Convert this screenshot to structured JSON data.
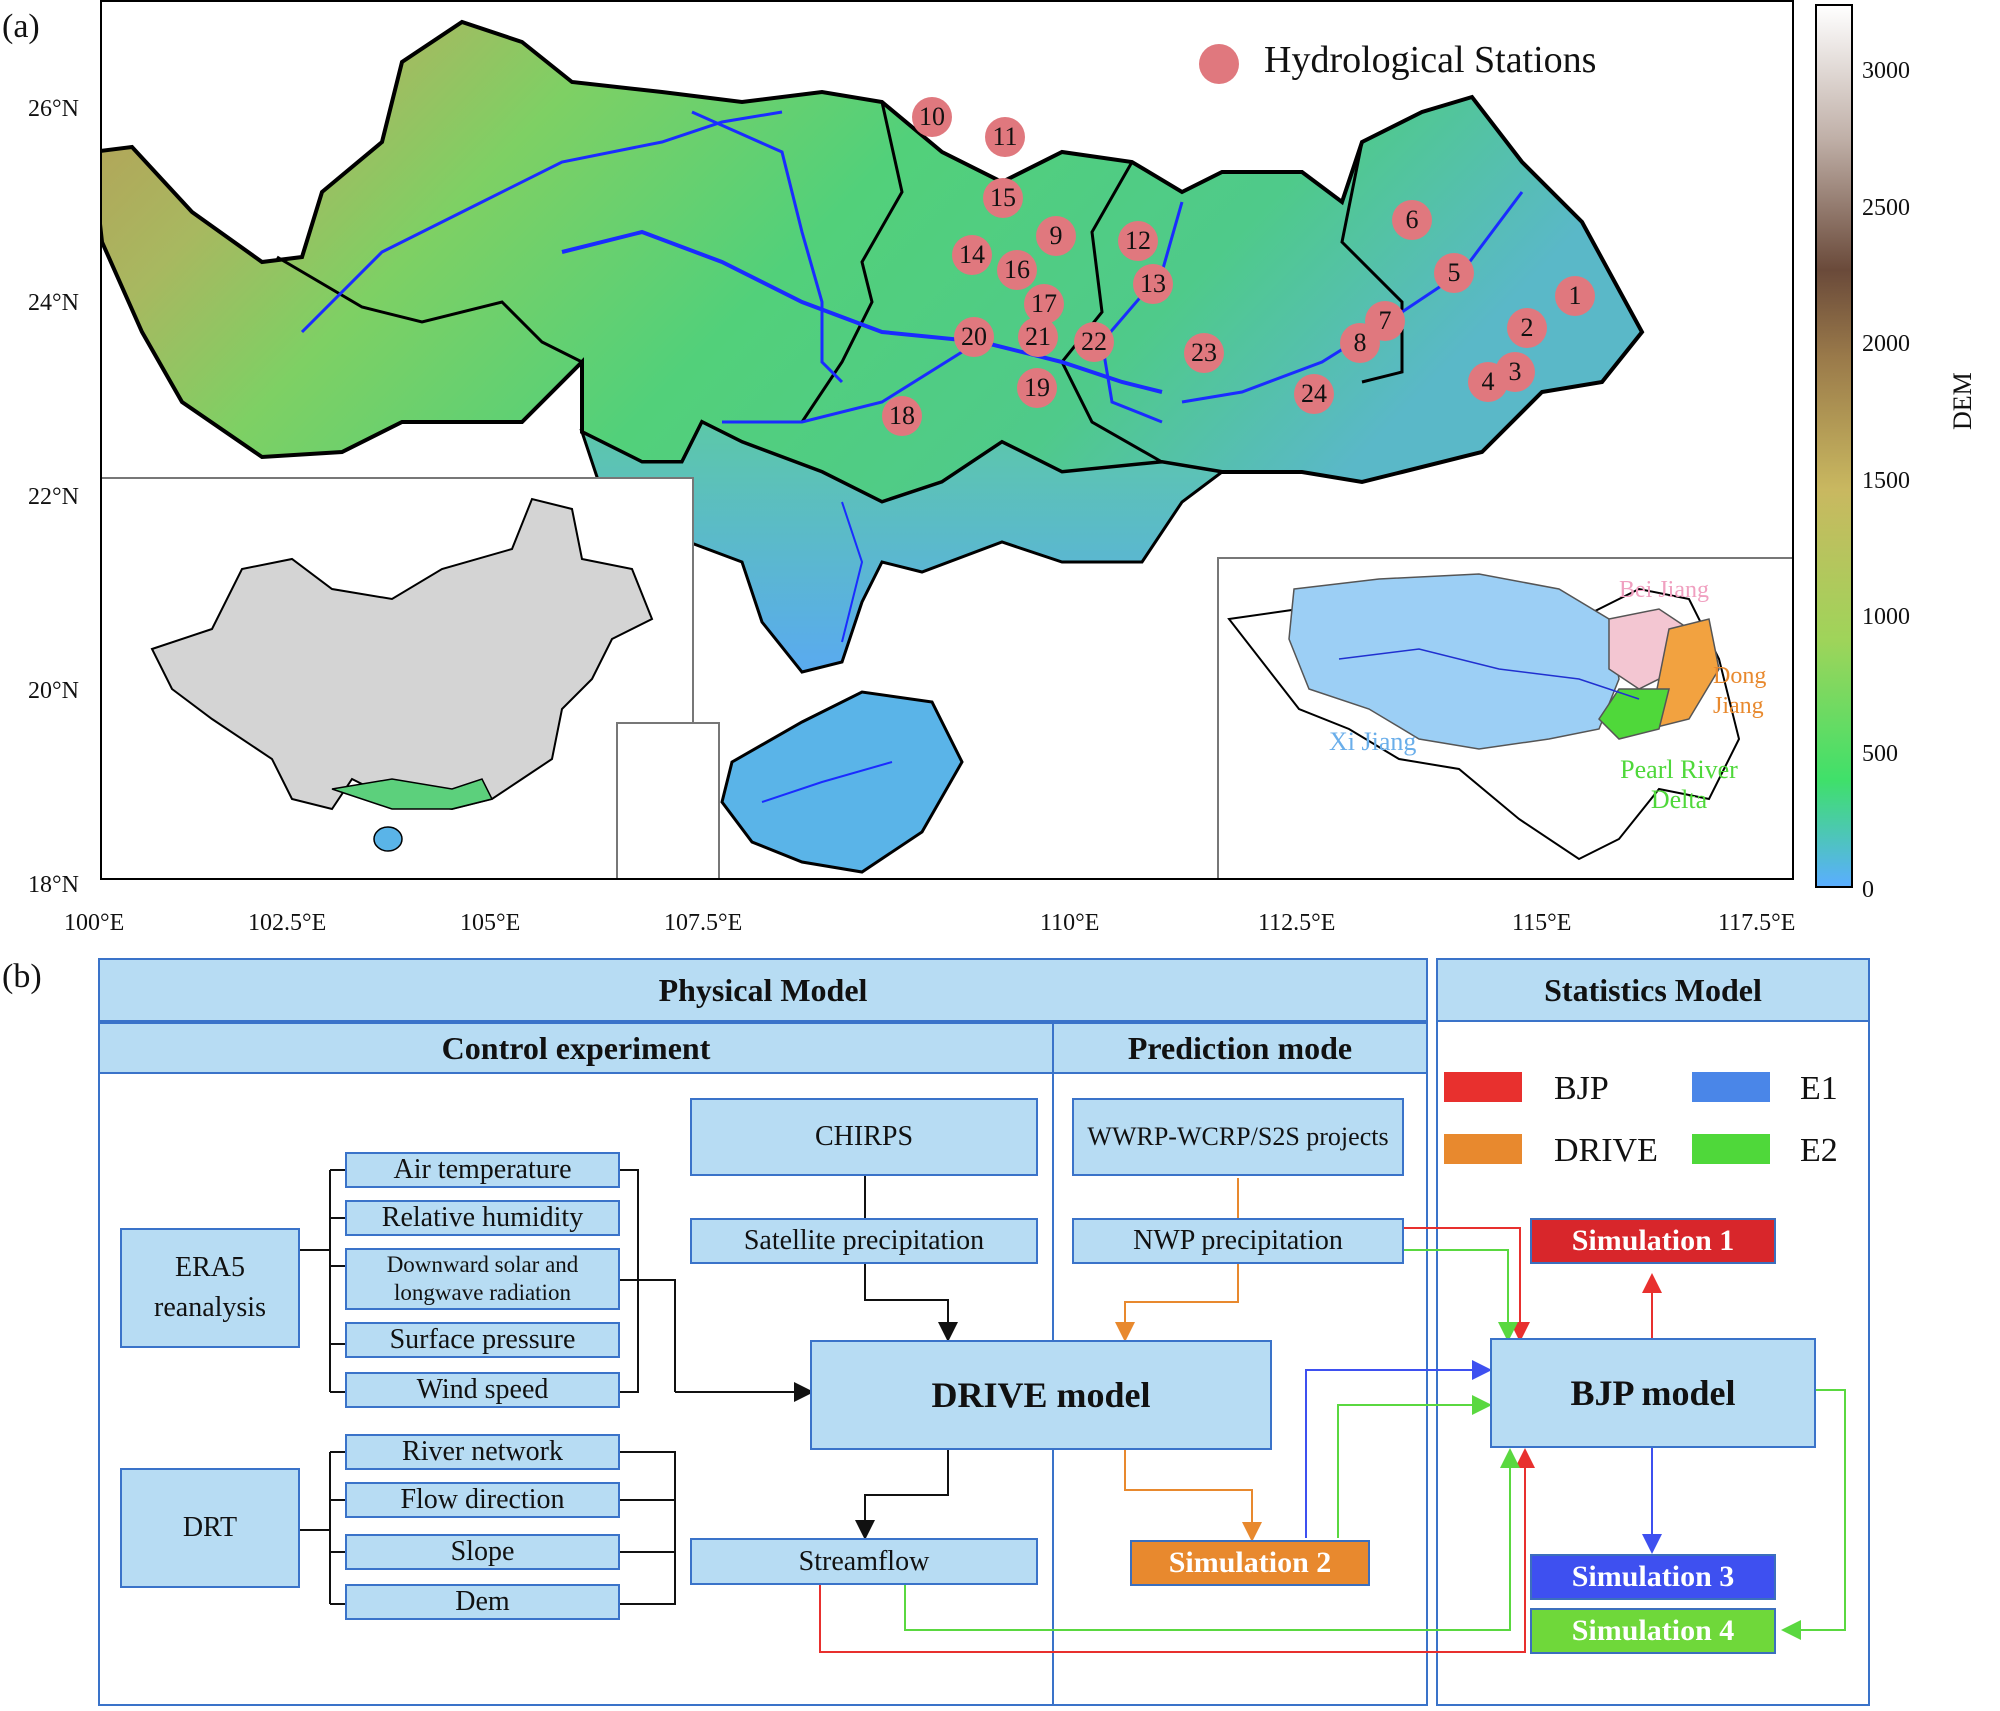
{
  "panel_a_label": "(a)",
  "panel_b_label": "(b)",
  "map": {
    "legend_label": "Hydrological Stations",
    "lat_ticks": [
      "26°N",
      "24°N",
      "22°N",
      "20°N",
      "18°N"
    ],
    "lon_ticks": [
      "100°E",
      "102.5°E",
      "105°E",
      "107.5°E",
      "110°E",
      "112.5°E",
      "115°E",
      "117.5°E"
    ],
    "stations": [
      "1",
      "2",
      "3",
      "4",
      "5",
      "6",
      "7",
      "8",
      "9",
      "10",
      "11",
      "12",
      "13",
      "14",
      "15",
      "16",
      "17",
      "18",
      "19",
      "20",
      "21",
      "22",
      "23",
      "24"
    ],
    "colorbar": {
      "label": "DEM",
      "ticks": [
        "3000",
        "2500",
        "2000",
        "1500",
        "1000",
        "500",
        "0"
      ],
      "colors": [
        "#5aaeff",
        "#3fe06a",
        "#c9d46a",
        "#9a6a3a",
        "#ffffff"
      ]
    },
    "inset_basins": {
      "bei": "Bei Jiang",
      "dong": "Dong Jiang",
      "xi": "Xi Jiang",
      "prd": "Pearl River Delta"
    }
  },
  "flow": {
    "physical_model": "Physical Model",
    "statistics_model": "Statistics Model",
    "control_experiment": "Control experiment",
    "prediction_mode": "Prediction mode",
    "era5": "ERA5 reanalysis",
    "drt": "DRT",
    "era5_vars": [
      "Air temperature",
      "Relative humidity",
      "Downward solar and longwave radiation",
      "Surface pressure",
      "Wind speed"
    ],
    "drt_vars": [
      "River network",
      "Flow direction",
      "Slope",
      "Dem"
    ],
    "chirps": "CHIRPS",
    "satellite_precip": "Satellite precipitation",
    "drive_model": "DRIVE model",
    "streamflow": "Streamflow",
    "wwrp": "WWRP-WCRP/S2S projects",
    "nwp": "NWP precipitation",
    "bjp_model": "BJP model",
    "sim1": "Simulation 1",
    "sim2": "Simulation 2",
    "sim3": "Simulation 3",
    "sim4": "Simulation 4",
    "legend": [
      {
        "label": "BJP",
        "color": "#e8302e"
      },
      {
        "label": "DRIVE",
        "color": "#e8892e"
      },
      {
        "label": "E1",
        "color": "#4a86e8"
      },
      {
        "label": "E2",
        "color": "#4fd83a"
      }
    ]
  }
}
